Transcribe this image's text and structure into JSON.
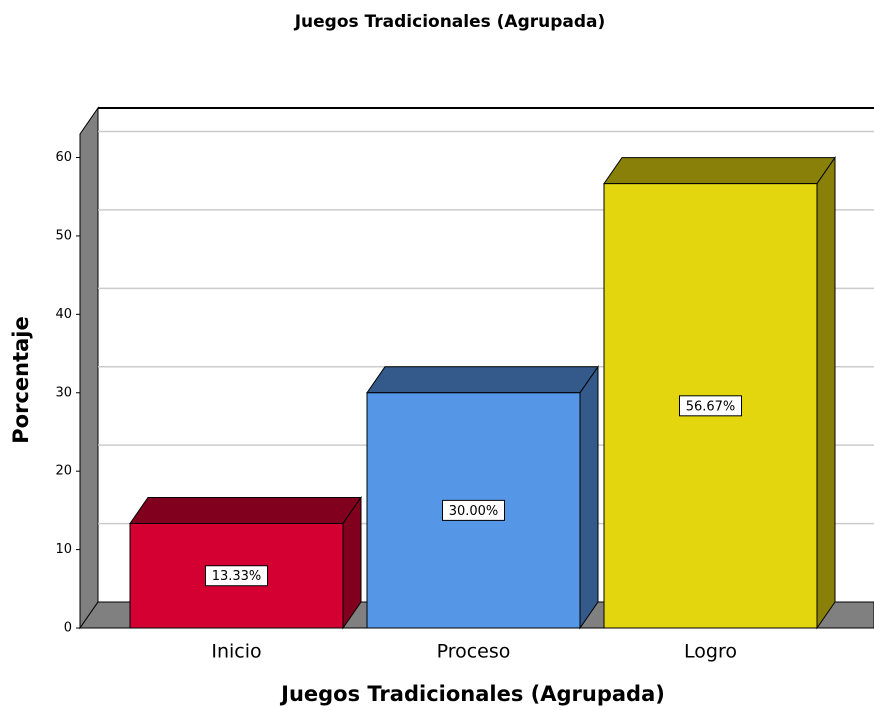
{
  "chart_data": {
    "type": "bar3d",
    "title": "Juegos Tradicionales (Agrupada)",
    "x_label": "Juegos Tradicionales (Agrupada)",
    "y_label": "Porcentaje",
    "categories": [
      "Inicio",
      "Proceso",
      "Logro"
    ],
    "values": [
      13.33,
      30.0,
      56.67
    ],
    "value_labels": [
      "13.33%",
      "30.00%",
      "56.67%"
    ],
    "colors": [
      "#d50032",
      "#5596e6",
      "#e3d60f"
    ],
    "ylim": [
      0,
      63
    ],
    "yticks": [
      0,
      10,
      20,
      30,
      40,
      50,
      60
    ],
    "grid": true
  }
}
